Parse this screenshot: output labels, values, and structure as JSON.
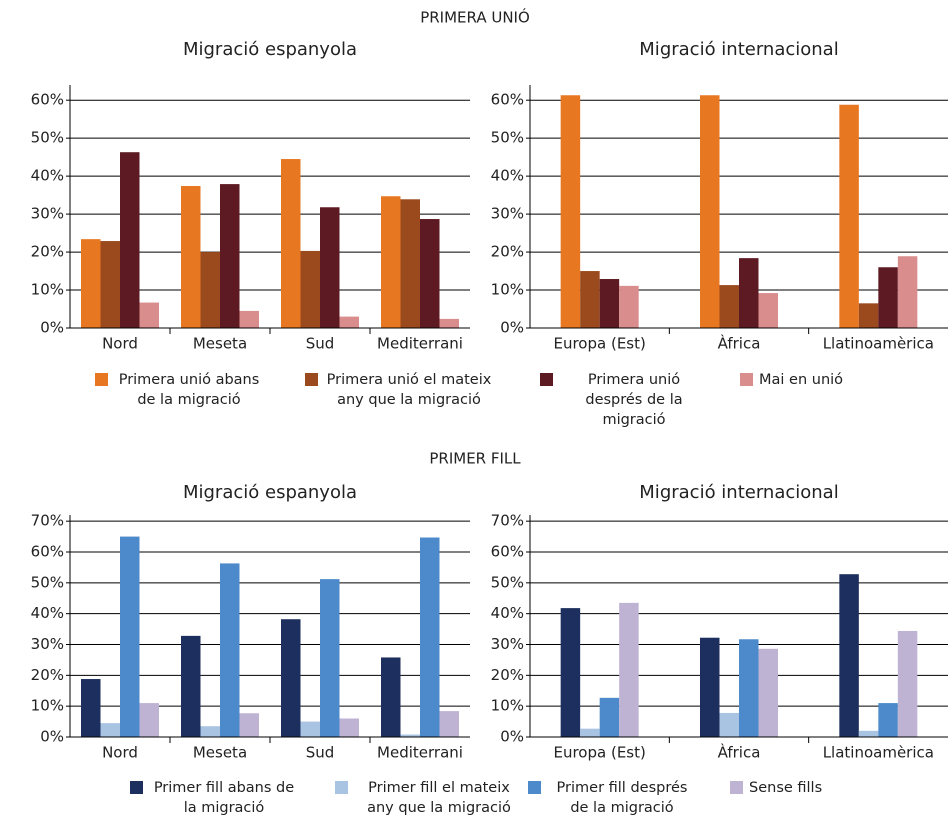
{
  "sections": [
    {
      "title": "PRIMERA UNIÓ",
      "legend": [
        {
          "name": "Primera unió abans de la migració",
          "color": "#e87722"
        },
        {
          "name": "Primera unió el mateix any que la migració",
          "color": "#9b4a1e"
        },
        {
          "name": "Primera unió després de la migració",
          "color": "#5e1a22"
        },
        {
          "name": "Mai en unió",
          "color": "#d98d8d"
        }
      ]
    },
    {
      "title": "PRIMER FILL",
      "legend": [
        {
          "name": "Primer fill abans de la migració",
          "color": "#1d2f5e"
        },
        {
          "name": "Primer fill el mateix any que la migració",
          "color": "#a9c4e2"
        },
        {
          "name": "Primer fill després de la migració",
          "color": "#4d8acb"
        },
        {
          "name": "Sense fills",
          "color": "#bfb3d4"
        }
      ]
    }
  ],
  "chart_data": [
    {
      "type": "bar",
      "title": "Migració espanyola",
      "categories": [
        "Nord",
        "Meseta",
        "Sud",
        "Mediterrani"
      ],
      "series": [
        {
          "values": [
            23.4,
            37.4,
            44.5,
            34.7
          ]
        },
        {
          "values": [
            22.9,
            20,
            20.3,
            33.9
          ]
        },
        {
          "values": [
            46.3,
            37.9,
            31.8,
            28.7
          ]
        },
        {
          "values": [
            6.7,
            4.5,
            3,
            2.4
          ]
        }
      ],
      "ylim": [
        0,
        64
      ],
      "yticks": [
        {
          "value": 0,
          "label": "0%"
        },
        {
          "value": 10,
          "label": "10%"
        },
        {
          "value": 20,
          "label": "20%"
        },
        {
          "value": 30,
          "label": "30%"
        },
        {
          "value": 40,
          "label": "40%"
        },
        {
          "value": 50,
          "label": "50%"
        },
        {
          "value": 60,
          "label": "60%"
        }
      ],
      "grid": true
    },
    {
      "type": "bar",
      "title": "Migració internacional",
      "categories": [
        "Europa (Est)",
        "Àfrica",
        "Llatinoamèrica"
      ],
      "series": [
        {
          "values": [
            61.3,
            61.3,
            58.8
          ]
        },
        {
          "values": [
            15,
            11.3,
            6.5
          ]
        },
        {
          "values": [
            12.9,
            18.4,
            16
          ]
        },
        {
          "values": [
            11.1,
            9.2,
            18.9
          ]
        }
      ],
      "ylim": [
        0,
        64
      ],
      "yticks": [
        {
          "value": 0,
          "label": "0%"
        },
        {
          "value": 10,
          "label": "10%"
        },
        {
          "value": 20,
          "label": "20%"
        },
        {
          "value": 30,
          "label": "30%"
        },
        {
          "value": 40,
          "label": "40%"
        },
        {
          "value": 50,
          "label": "50%"
        },
        {
          "value": 60,
          "label": "60%"
        }
      ],
      "grid": true
    },
    {
      "type": "bar",
      "title": "Migració espanyola",
      "categories": [
        "Nord",
        "Meseta",
        "Sud",
        "Mediterrani"
      ],
      "series": [
        {
          "values": [
            18.8,
            32.8,
            38.2,
            25.8
          ]
        },
        {
          "values": [
            4.5,
            3.5,
            5,
            0.8
          ]
        },
        {
          "values": [
            65,
            56.3,
            51.2,
            64.7
          ]
        },
        {
          "values": [
            11,
            7.7,
            6,
            8.4
          ]
        }
      ],
      "ylim": [
        0,
        72
      ],
      "yticks": [
        {
          "value": 0,
          "label": "0%"
        },
        {
          "value": 10,
          "label": "10%"
        },
        {
          "value": 20,
          "label": "20%"
        },
        {
          "value": 30,
          "label": "30%"
        },
        {
          "value": 40,
          "label": "40%"
        },
        {
          "value": 50,
          "label": "50%"
        },
        {
          "value": 60,
          "label": "60%"
        },
        {
          "value": 70,
          "label": "70%"
        }
      ],
      "grid": true
    },
    {
      "type": "bar",
      "title": "Migració internacional",
      "categories": [
        "Europa (Est)",
        "Àfrica",
        "Llatinoamèrica"
      ],
      "series": [
        {
          "values": [
            41.8,
            32.2,
            52.8
          ]
        },
        {
          "values": [
            2.7,
            7.8,
            2
          ]
        },
        {
          "values": [
            12.7,
            31.7,
            11
          ]
        },
        {
          "values": [
            43.5,
            28.6,
            34.4
          ]
        }
      ],
      "ylim": [
        0,
        72
      ],
      "yticks": [
        {
          "value": 0,
          "label": "0%"
        },
        {
          "value": 10,
          "label": "10%"
        },
        {
          "value": 20,
          "label": "20%"
        },
        {
          "value": 30,
          "label": "30%"
        },
        {
          "value": 40,
          "label": "40%"
        },
        {
          "value": 50,
          "label": "50%"
        },
        {
          "value": 60,
          "label": "60%"
        },
        {
          "value": 70,
          "label": "70%"
        }
      ],
      "grid": true
    }
  ]
}
